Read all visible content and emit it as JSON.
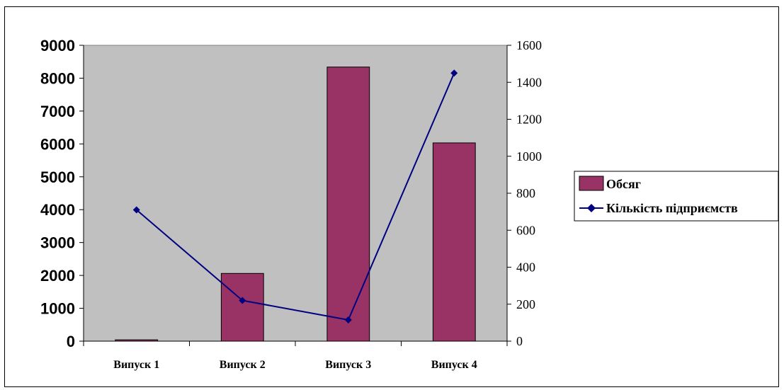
{
  "chart_data": {
    "type": "bar",
    "categories": [
      "Випуск 1",
      "Випуск 2",
      "Випуск 3",
      "Випуск 4"
    ],
    "series": [
      {
        "name": "Обсяг",
        "type": "bar",
        "axis": "left",
        "values": [
          40,
          2060,
          8340,
          6030
        ]
      },
      {
        "name": "Кількість підприємств",
        "type": "line",
        "axis": "right",
        "values": [
          710,
          220,
          115,
          1450
        ]
      }
    ],
    "y_left": {
      "ticks": [
        0,
        1000,
        2000,
        3000,
        4000,
        5000,
        6000,
        7000,
        8000,
        9000
      ],
      "ylim": [
        0,
        9000
      ]
    },
    "y_right": {
      "ticks": [
        0,
        200,
        400,
        600,
        800,
        1000,
        1200,
        1400,
        1600
      ],
      "ylim": [
        0,
        1600
      ]
    },
    "legend_position": "right",
    "grid": false,
    "colors": {
      "bar": "#993366",
      "line": "#000080",
      "plot_bg": "#c0c0c0"
    }
  }
}
